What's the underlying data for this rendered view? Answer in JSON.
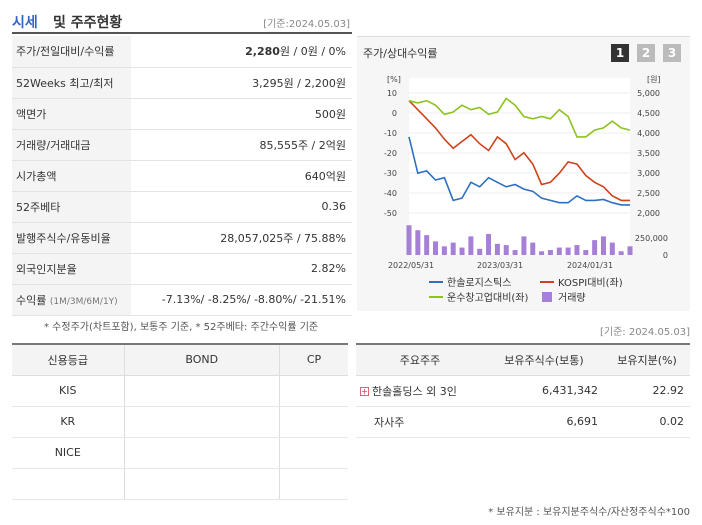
{
  "header": {
    "title_main": "시세",
    "title_rest": "및 주주현황",
    "date": "[기준:2024.05.03]"
  },
  "info_rows": [
    {
      "label": "주가/전일대비/수익률",
      "value": "2,280원 / 0원 / 0%"
    },
    {
      "label": "52Weeks 최고/최저",
      "value": "3,295원 / 2,200원"
    },
    {
      "label": "액면가",
      "value": "500원"
    },
    {
      "label": "거래량/거래대금",
      "value": "85,555주 / 2억원"
    },
    {
      "label": "시가총액",
      "value": "640억원"
    },
    {
      "label": "52주베타",
      "value": "0.36"
    },
    {
      "label": "발행주식수/유동비율",
      "value": "28,057,025주 / 75.88%"
    },
    {
      "label": "외국인지분율",
      "value": "2.82%"
    }
  ],
  "returns": {
    "label": "수익률",
    "periods": "(1M/3M/6M/1Y)",
    "value": "-7.13%/ -8.25%/ -8.80%/ -21.51%"
  },
  "notes": {
    "left": "* 수정주가(차트포함), 보통주 기준, * 52주베타: 주간수익률 기준",
    "right_date": "[기준: 2024.05.03]",
    "bottom": "* 보유지분 : 보유지분주식수/자산정주식수*100"
  },
  "chart_header": {
    "title": "주가/상대수익률",
    "pages": [
      "1",
      "2",
      "3"
    ],
    "colors": {
      "active": "#333333",
      "inactive": "#bbbbbb"
    }
  },
  "chart_data": {
    "type": "line",
    "left_axis": {
      "unit": "[%]",
      "ticks": [
        "10",
        "0",
        "-10",
        "-20",
        "-30",
        "-40",
        "-50"
      ],
      "range": [
        -50,
        10
      ]
    },
    "right_axis": {
      "unit": "[원]",
      "ticks": [
        "5,000",
        "4,500",
        "4,000",
        "3,500",
        "3,000",
        "2,500",
        "2,000"
      ],
      "range": [
        2000,
        5000
      ]
    },
    "volume_axis": {
      "ticks": [
        "250,000",
        "0"
      ],
      "range": [
        0,
        250000
      ]
    },
    "x_labels": [
      "2022/05/31",
      "2023/03/31",
      "2024/01/31"
    ],
    "series": [
      {
        "name": "한솔로지스틱스",
        "axis": "right",
        "color": "#2f6fc0",
        "values": [
          3700,
          2900,
          2950,
          2750,
          2800,
          2300,
          2350,
          2700,
          2600,
          2800,
          2700,
          2600,
          2650,
          2550,
          2500,
          2350,
          2300,
          2250,
          2250,
          2400,
          2300,
          2300,
          2320,
          2250,
          2200,
          2200
        ]
      },
      {
        "name": "KOSPI대비(좌)",
        "axis": "left",
        "color": "#d0421b",
        "values": [
          0,
          -4,
          -8,
          -12,
          -17,
          -21,
          -18,
          -15,
          -19,
          -22,
          -16,
          -19,
          -26,
          -23,
          -28,
          -37,
          -36,
          -32,
          -27,
          -28,
          -33,
          -36,
          -38,
          -42,
          -44,
          -44
        ]
      },
      {
        "name": "운수창고업대비(좌)",
        "axis": "left",
        "color": "#8dc21f",
        "values": [
          0,
          -1,
          0,
          -2,
          -6,
          -5,
          -2,
          -4,
          -3,
          -6,
          -5,
          1,
          -2,
          -7,
          -8,
          -7,
          -8,
          -4,
          -7,
          -16,
          -16,
          -13,
          -12,
          -9,
          -12,
          -13
        ]
      },
      {
        "name": "거래량",
        "axis": "volume",
        "color": "#a67fd6",
        "values": [
          240000,
          200000,
          160000,
          110000,
          70000,
          100000,
          60000,
          150000,
          50000,
          170000,
          90000,
          80000,
          40000,
          150000,
          100000,
          30000,
          40000,
          60000,
          60000,
          80000,
          40000,
          120000,
          150000,
          100000,
          30000,
          70000
        ]
      }
    ]
  },
  "credit": {
    "headers": [
      "신용등급",
      "BOND",
      "CP"
    ],
    "rows": [
      [
        "KIS",
        "",
        ""
      ],
      [
        "KR",
        "",
        ""
      ],
      [
        "NICE",
        "",
        ""
      ],
      [
        "",
        "",
        ""
      ]
    ]
  },
  "holders": {
    "headers": [
      "주요주주",
      "보유주식수(보통)",
      "보유지분(%)"
    ],
    "rows": [
      {
        "name": "한솔홀딩스 외 3인",
        "shares": "6,431,342",
        "pct": "22.92",
        "expand": "+"
      },
      {
        "name": "자사주",
        "shares": "6,691",
        "pct": "0.02",
        "expand": ""
      }
    ]
  }
}
